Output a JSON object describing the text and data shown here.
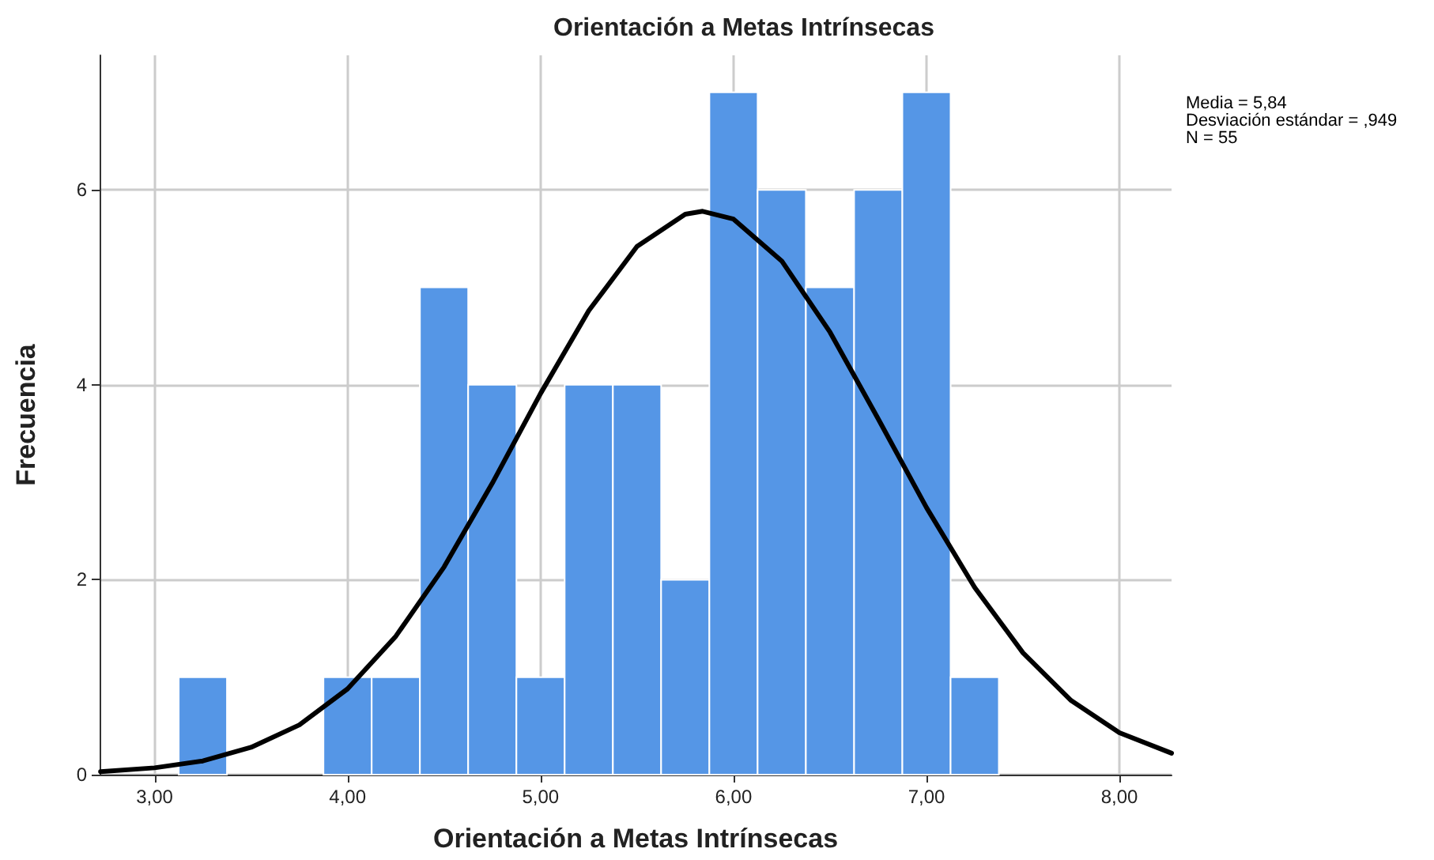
{
  "chart_data": {
    "type": "histogram",
    "title": "Orientación a Metas Intrínsecas",
    "xlabel": "Orientación a Metas Intrínsecas",
    "ylabel": "Frecuencia",
    "annotations": [
      "Media = 5,84",
      "Desviación estándar = ,949",
      "N = 55"
    ],
    "series": [
      {
        "type": "histogram",
        "color": "#5596e6",
        "bins": [
          3.125,
          3.375,
          3.625,
          3.875,
          4.125,
          4.375,
          4.625,
          4.875,
          5.125,
          5.375,
          5.625,
          5.875,
          6.125,
          6.375,
          6.625,
          6.875,
          7.125,
          7.375
        ],
        "values": [
          1,
          0,
          0,
          1,
          1,
          5,
          4,
          1,
          4,
          4,
          2,
          7,
          6,
          5,
          6,
          7,
          1
        ]
      },
      {
        "type": "line",
        "color": "#000000",
        "x": [
          2.72,
          3.0,
          3.25,
          3.5,
          3.75,
          4.0,
          4.25,
          4.5,
          4.75,
          5.0,
          5.25,
          5.5,
          5.75,
          5.84,
          6.0,
          6.25,
          6.5,
          6.75,
          7.0,
          7.25,
          7.5,
          7.75,
          8.0,
          8.27
        ],
        "values": [
          0.03,
          0.07,
          0.14,
          0.28,
          0.51,
          0.88,
          1.42,
          2.13,
          2.99,
          3.91,
          4.76,
          5.42,
          5.75,
          5.78,
          5.7,
          5.27,
          4.54,
          3.65,
          2.74,
          1.92,
          1.25,
          0.76,
          0.43,
          0.22
        ]
      }
    ],
    "xlim": [
      2.715,
      8.27
    ],
    "xticks": [
      {
        "value": 3,
        "label": "3,00"
      },
      {
        "value": 4,
        "label": "4,00"
      },
      {
        "value": 5,
        "label": "5,00"
      },
      {
        "value": 6,
        "label": "6,00"
      },
      {
        "value": 7,
        "label": "7,00"
      },
      {
        "value": 8,
        "label": "8,00"
      }
    ],
    "ylim": [
      0,
      7.38
    ],
    "yticks": [
      0,
      2,
      4,
      6
    ],
    "grid": true,
    "marker": "none",
    "line_style": "solid"
  }
}
